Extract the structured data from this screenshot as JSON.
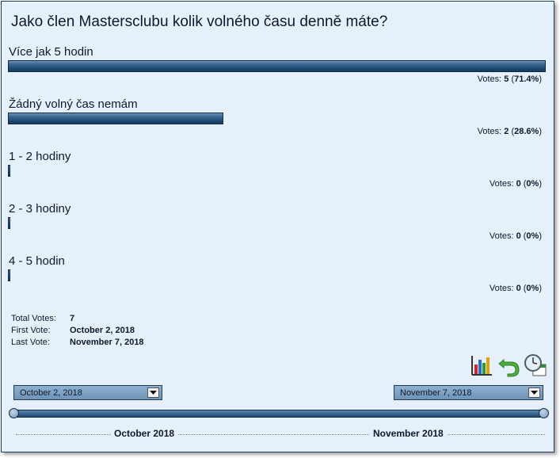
{
  "poll": {
    "question": "Jako člen Mastersclubu kolik volného času denně máte?",
    "answers": [
      {
        "label": "Více jak 5 hodin",
        "votes_prefix": "Votes:",
        "votes": "5",
        "percent_text": "71.4%",
        "share": 1.0
      },
      {
        "label": "Žádný volný čas nemám",
        "votes_prefix": "Votes:",
        "votes": "2",
        "percent_text": "28.6%",
        "share": 0.4
      },
      {
        "label": "1 - 2 hodiny",
        "votes_prefix": "Votes:",
        "votes": "0",
        "percent_text": "0%",
        "share": 0
      },
      {
        "label": "2 - 3 hodiny",
        "votes_prefix": "Votes:",
        "votes": "0",
        "percent_text": "0%",
        "share": 0
      },
      {
        "label": "4 - 5 hodin",
        "votes_prefix": "Votes:",
        "votes": "0",
        "percent_text": "0%",
        "share": 0
      }
    ]
  },
  "stats": {
    "total_label": "Total Votes:",
    "total_value": "7",
    "first_label": "First Vote:",
    "first_value": "October 2, 2018",
    "last_label": "Last Vote:",
    "last_value": "November 7, 2018"
  },
  "icons": [
    "bar-chart-icon",
    "undo-arrow-icon",
    "clock-calendar-icon"
  ],
  "range": {
    "start_date": "October 2, 2018",
    "end_date": "November 7, 2018",
    "month_labels": [
      "October 2018",
      "November 2018"
    ]
  },
  "colors": {
    "panel_bg": "#e6f0fa",
    "bar": "#1e4a74",
    "border": "#1d3c5a"
  }
}
